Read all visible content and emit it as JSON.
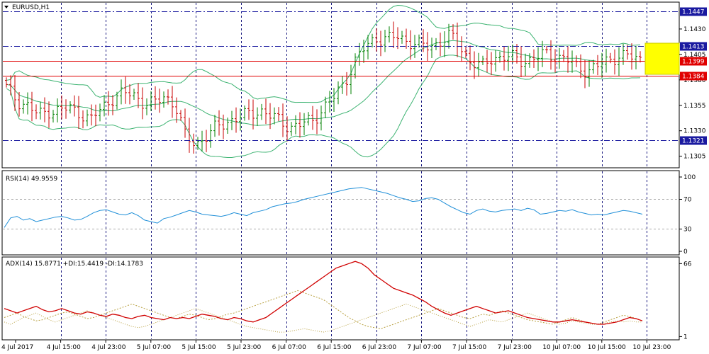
{
  "window": {
    "title": "EURUSD,H1"
  },
  "colors": {
    "bull": "#008000",
    "bear": "#c80000",
    "bands": "#3cb371",
    "hline_red": "#e00000",
    "hline_blue": "#1a1aa0",
    "rsi": "#1f8fd8",
    "adx": "#d00000",
    "di": "#b8a040",
    "highlight": "#ffff00",
    "grid": "#1a1a80"
  },
  "chart_data": [
    {
      "type": "candlestick",
      "title": "EURUSD,H1",
      "ylim": [
        1.1295,
        1.1455
      ],
      "y_ticks": [
        "1.1430",
        "1.1405",
        "1.1380",
        "1.1355",
        "1.1330",
        "1.1305"
      ],
      "x_ticks": [
        "4 Jul 2017",
        "4 Jul 15:00",
        "4 Jul 23:00",
        "5 Jul 07:00",
        "5 Jul 15:00",
        "5 Jul 23:00",
        "6 Jul 07:00",
        "6 Jul 15:00",
        "6 Jul 23:00",
        "7 Jul 07:00",
        "7 Jul 15:00",
        "7 Jul 23:00",
        "10 Jul 07:00",
        "10 Jul 15:00",
        "10 Jul 23:00"
      ],
      "price_levels": [
        {
          "name": "resistance-high",
          "price": 1.1447,
          "label": "1.1447",
          "style": "dashdot",
          "color": "#1a1aa0"
        },
        {
          "name": "resistance",
          "price": 1.1413,
          "label": "1.1413",
          "style": "dashdot",
          "color": "#1a1aa0"
        },
        {
          "name": "current",
          "price": 1.1399,
          "label": "1.1399",
          "style": "solid",
          "color": "#e00000"
        },
        {
          "name": "support",
          "price": 1.1384,
          "label": "1.1384",
          "style": "solid",
          "color": "#e00000"
        },
        {
          "name": "support-low",
          "price": 1.1321,
          "label": "1.1321",
          "style": "dashdot",
          "color": "#1a1aa0"
        }
      ],
      "price_keys": [
        1.1372,
        1.136,
        1.1355,
        1.1345,
        1.135,
        1.135,
        1.1352,
        1.1348,
        1.134,
        1.1352,
        1.1362,
        1.1366,
        1.1366,
        1.1358,
        1.1356,
        1.1365,
        1.1355,
        1.1322,
        1.1318,
        1.1325,
        1.1334,
        1.134,
        1.1343,
        1.1346,
        1.1351,
        1.1344,
        1.1339,
        1.1334,
        1.1336,
        1.1341,
        1.1352,
        1.1362,
        1.1378,
        1.1398,
        1.1412,
        1.1422,
        1.142,
        1.1422,
        1.1419,
        1.1414,
        1.1412,
        1.1418,
        1.1423,
        1.1412,
        1.1398,
        1.1392,
        1.1402,
        1.1403,
        1.1401,
        1.1399,
        1.1401,
        1.1405,
        1.1404,
        1.14,
        1.1392,
        1.139,
        1.1393,
        1.1399,
        1.1405,
        1.1402,
        1.14
      ]
    },
    {
      "type": "line",
      "title": "RSI(14) 49.9559",
      "label": "RSI(14)",
      "value": "49.9559",
      "ylim": [
        0,
        100
      ],
      "y_ticks": [
        "100",
        "70",
        "30",
        "0"
      ],
      "levels": [
        70,
        30
      ],
      "series": [
        {
          "values": [
            32,
            45,
            47,
            42,
            44,
            40,
            42,
            44,
            46,
            47,
            45,
            42,
            43,
            47,
            52,
            55,
            56,
            53,
            50,
            49,
            52,
            48,
            42,
            40,
            38,
            44,
            46,
            49,
            52,
            55,
            53,
            50,
            49,
            48,
            47,
            49,
            52,
            50,
            48,
            52,
            54,
            56,
            60,
            62,
            64,
            65,
            67,
            70,
            72,
            74,
            76,
            78,
            80,
            82,
            84,
            85,
            86,
            84,
            82,
            80,
            78,
            75,
            72,
            70,
            67,
            68,
            71,
            72,
            70,
            65,
            60,
            56,
            52,
            50,
            55,
            57,
            54,
            53,
            55,
            56,
            57,
            55,
            58,
            56,
            50,
            51,
            53,
            55,
            54,
            56,
            53,
            51,
            49,
            50,
            49,
            51,
            53,
            55,
            54,
            52,
            50
          ]
        }
      ]
    },
    {
      "type": "line",
      "title": "ADX(14) 15.8771 +DI:15.4419 -DI:14.1783",
      "label": "ADX(14)",
      "adx_value": "15.8771",
      "plus_di": "15.4419",
      "minus_di": "14.1783",
      "ylim": [
        0,
        70
      ],
      "y_ticks": [
        "66",
        "1"
      ],
      "series": [
        {
          "values": [
            26,
            24,
            22,
            24,
            26,
            28,
            25,
            23,
            24,
            26,
            24,
            22,
            21,
            23,
            22,
            20,
            19,
            21,
            20,
            18,
            17,
            19,
            20,
            18,
            17,
            16,
            18,
            17,
            18,
            17,
            19,
            21,
            20,
            19,
            17,
            16,
            18,
            17,
            15,
            14,
            16,
            18,
            22,
            26,
            30,
            34,
            38,
            42,
            46,
            50,
            54,
            58,
            62,
            64,
            66,
            68,
            66,
            62,
            56,
            52,
            48,
            44,
            42,
            40,
            38,
            35,
            32,
            28,
            25,
            22,
            20,
            22,
            24,
            26,
            28,
            26,
            24,
            22,
            23,
            24,
            22,
            20,
            18,
            17,
            16,
            15,
            14,
            14,
            15,
            16,
            15,
            14,
            13,
            12,
            12,
            13,
            14,
            16,
            18,
            17,
            15
          ]
        },
        {
          "values": [
            18,
            20,
            22,
            19,
            17,
            15,
            16,
            18,
            20,
            22,
            23,
            21,
            19,
            17,
            18,
            20,
            22,
            24,
            26,
            28,
            30,
            28,
            26,
            24,
            22,
            20,
            18,
            17,
            19,
            21,
            20,
            18,
            16,
            17,
            19,
            21,
            22,
            24,
            26,
            28,
            30,
            32,
            34,
            36,
            38,
            40,
            42,
            40,
            38,
            36,
            34,
            30,
            26,
            22,
            18,
            15,
            12,
            10,
            9,
            8,
            10,
            12,
            14,
            16,
            18,
            20,
            22,
            24,
            26,
            24,
            22,
            20,
            18,
            17,
            19,
            21,
            20,
            22,
            24,
            22,
            20,
            18,
            16,
            15,
            14,
            13,
            12,
            14,
            16,
            18,
            16,
            14,
            13,
            12,
            14,
            16,
            18,
            20,
            19,
            17,
            15
          ]
        },
        {
          "values": [
            14,
            12,
            15,
            18,
            20,
            22,
            19,
            16,
            14,
            16,
            18,
            20,
            22,
            24,
            22,
            20,
            18,
            16,
            14,
            12,
            10,
            9,
            10,
            12,
            14,
            16,
            18,
            20,
            22,
            24,
            26,
            24,
            22,
            20,
            18,
            16,
            14,
            12,
            10,
            9,
            8,
            7,
            6,
            5,
            5,
            6,
            7,
            8,
            7,
            6,
            5,
            6,
            8,
            10,
            12,
            14,
            16,
            18,
            20,
            22,
            24,
            26,
            28,
            30,
            28,
            26,
            24,
            22,
            20,
            18,
            16,
            14,
            12,
            10,
            12,
            14,
            16,
            15,
            14,
            16,
            18,
            20,
            22,
            20,
            18,
            16,
            14,
            12,
            13,
            15,
            14,
            13,
            12,
            12,
            13,
            14,
            15,
            14,
            15,
            14,
            14
          ]
        }
      ]
    }
  ]
}
